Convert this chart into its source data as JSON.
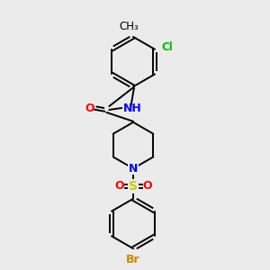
{
  "background_color": "#ebebeb",
  "bond_color": "#000000",
  "atom_colors": {
    "N": "#0000ff",
    "O": "#ff0000",
    "S": "#cccc00",
    "Cl": "#00bb00",
    "Br": "#cc8800",
    "C": "#000000",
    "H": "#000000"
  },
  "font_size": 8.5,
  "fig_width": 3.0,
  "fig_height": 3.0,
  "dpi": 100
}
